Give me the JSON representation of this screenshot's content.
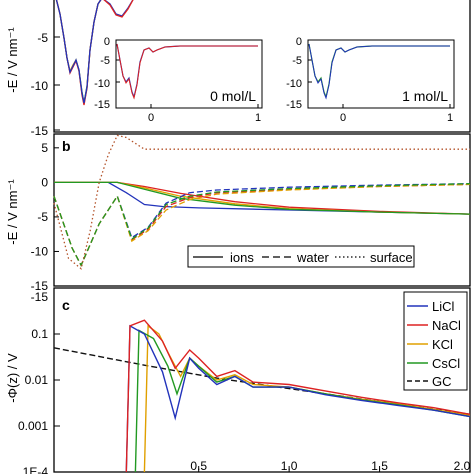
{
  "colors": {
    "LiCl": "#2233bb",
    "NaCl": "#dd2222",
    "KCl": "#e0a000",
    "CsCl": "#229922",
    "GC": "#111111",
    "axis": "#000000"
  },
  "chart_data": [
    {
      "id": "a",
      "type": "line",
      "ylabel": "-E / V nm⁻¹",
      "yticks": [
        "-5",
        "-10",
        "-15"
      ],
      "insets": [
        {
          "label": "0 mol/L",
          "xticks": [
            "0",
            "1"
          ],
          "yticks": [
            "0",
            "-5",
            "-10",
            "-15"
          ]
        },
        {
          "label": "1 mol/L",
          "xticks": [
            "0",
            "1"
          ],
          "yticks": [
            "0",
            "-5",
            "-10",
            "-15"
          ]
        }
      ]
    },
    {
      "id": "b",
      "type": "line",
      "panel_label": "b",
      "xlim": [
        -0.3,
        2.0
      ],
      "ylim": [
        -15,
        7
      ],
      "ylabel": "-E / V nm⁻¹",
      "yticks": [
        "-15",
        "-10",
        "-5",
        "0",
        "5"
      ],
      "legend": {
        "position": "bottom-right",
        "entries": [
          {
            "name": "ions",
            "dash": "solid"
          },
          {
            "name": "water",
            "dash": "dashed"
          },
          {
            "name": "surface",
            "dash": "dotted"
          }
        ]
      },
      "series": [
        {
          "name": "ions",
          "salt": "LiCl",
          "x": [
            -0.3,
            0.0,
            0.1,
            0.2,
            0.3,
            0.5,
            1.0,
            1.5,
            2.0
          ],
          "y": [
            0,
            0,
            -1.5,
            -3.2,
            -3.5,
            -3.7,
            -4.0,
            -4.3,
            -4.6
          ]
        },
        {
          "name": "ions",
          "salt": "NaCl",
          "x": [
            -0.3,
            0.05,
            0.2,
            0.4,
            0.7,
            1.0,
            1.5,
            2.0
          ],
          "y": [
            0,
            0,
            -0.6,
            -1.6,
            -2.8,
            -3.6,
            -4.2,
            -4.6
          ]
        },
        {
          "name": "ions",
          "salt": "KCl",
          "x": [
            -0.3,
            0.05,
            0.2,
            0.4,
            0.7,
            1.0,
            1.5,
            2.0
          ],
          "y": [
            0,
            0,
            -0.8,
            -2.0,
            -3.1,
            -3.8,
            -4.3,
            -4.6
          ]
        },
        {
          "name": "ions",
          "salt": "CsCl",
          "x": [
            -0.3,
            0.05,
            0.2,
            0.4,
            0.7,
            1.0,
            1.5,
            2.0
          ],
          "y": [
            0,
            0,
            -1.0,
            -2.3,
            -3.3,
            -3.9,
            -4.3,
            -4.6
          ]
        },
        {
          "name": "water",
          "salt": "LiCl",
          "x": [
            -0.3,
            -0.2,
            -0.15,
            -0.05,
            0.05,
            0.13,
            0.22,
            0.32,
            0.45,
            0.6,
            1.0,
            1.5,
            2.0
          ],
          "y": [
            -2,
            -9.5,
            -12,
            -6,
            -2,
            -8,
            -6.5,
            -3,
            -1.5,
            -1.1,
            -0.7,
            -0.4,
            -0.2
          ]
        },
        {
          "name": "water",
          "salt": "NaCl",
          "x": [
            -0.3,
            -0.2,
            -0.15,
            -0.05,
            0.05,
            0.13,
            0.22,
            0.32,
            0.45,
            0.6,
            1.0,
            1.5,
            2.0
          ],
          "y": [
            -2,
            -9.5,
            -12,
            -6,
            -2,
            -8.3,
            -6.8,
            -3.5,
            -2.2,
            -1.5,
            -1.0,
            -0.6,
            -0.3
          ]
        },
        {
          "name": "water",
          "salt": "KCl",
          "x": [
            -0.3,
            -0.2,
            -0.15,
            -0.05,
            0.05,
            0.13,
            0.22,
            0.32,
            0.45,
            0.6,
            1.0,
            1.5,
            2.0
          ],
          "y": [
            -2,
            -9.5,
            -12,
            -6,
            -2,
            -8.5,
            -7,
            -4,
            -2.5,
            -1.7,
            -1.1,
            -0.6,
            -0.3
          ]
        },
        {
          "name": "water",
          "salt": "CsCl",
          "x": [
            -0.3,
            -0.2,
            -0.15,
            -0.05,
            0.05,
            0.13,
            0.22,
            0.32,
            0.45,
            0.6,
            1.0,
            1.5,
            2.0
          ],
          "y": [
            -2,
            -9.5,
            -12,
            -6,
            -2,
            -8.2,
            -6.6,
            -3.2,
            -2.0,
            -1.4,
            -0.9,
            -0.5,
            -0.2
          ]
        },
        {
          "name": "surface",
          "x": [
            -0.3,
            -0.22,
            -0.15,
            -0.1,
            -0.05,
            0.0,
            0.05,
            0.1,
            0.2,
            2.0
          ],
          "y": [
            -3,
            -11,
            -12.5,
            -7,
            0,
            4,
            6.8,
            6.5,
            4.8,
            4.8
          ]
        }
      ]
    },
    {
      "id": "c",
      "type": "line",
      "panel_label": "c",
      "xlim": [
        -0.3,
        2.0
      ],
      "ylabel": "-Φ(z) / V",
      "yscale": "log",
      "ylim": [
        0.0001,
        1
      ],
      "yticks": [
        "1E-4",
        "0.001",
        "0.01",
        "0.1"
      ],
      "top_tick": "-15",
      "xticks": [
        "0.5",
        "1.0",
        "1.5",
        "2.0"
      ],
      "legend": {
        "position": "top-right",
        "entries": [
          "LiCl",
          "NaCl",
          "KCl",
          "CsCl",
          "GC"
        ]
      },
      "series": [
        {
          "name": "LiCl",
          "x": [
            0.1,
            0.12,
            0.2,
            0.3,
            0.37,
            0.45,
            0.5,
            0.6,
            0.7,
            0.8,
            1.0,
            1.2,
            1.4,
            1.6,
            1.8,
            2.0
          ],
          "y": [
            0.0001,
            0.15,
            0.1,
            0.015,
            0.0015,
            0.03,
            0.018,
            0.008,
            0.012,
            0.007,
            0.007,
            0.0048,
            0.0036,
            0.0028,
            0.0022,
            0.0016
          ]
        },
        {
          "name": "NaCl",
          "x": [
            0.1,
            0.12,
            0.2,
            0.3,
            0.37,
            0.45,
            0.5,
            0.6,
            0.7,
            0.8,
            1.0,
            1.2,
            1.4,
            1.6,
            1.8,
            2.0
          ],
          "y": [
            0.0001,
            0.15,
            0.2,
            0.07,
            0.018,
            0.045,
            0.03,
            0.012,
            0.016,
            0.009,
            0.008,
            0.0058,
            0.0042,
            0.0032,
            0.0025,
            0.0018
          ]
        },
        {
          "name": "KCl",
          "x": [
            0.2,
            0.22,
            0.28,
            0.33,
            0.4,
            0.45,
            0.5,
            0.6,
            0.7,
            0.8,
            1.0,
            1.2,
            1.4,
            1.6,
            1.8,
            2.0
          ],
          "y": [
            0.0001,
            0.15,
            0.1,
            0.04,
            0.012,
            0.03,
            0.02,
            0.01,
            0.013,
            0.008,
            0.007,
            0.005,
            0.0038,
            0.003,
            0.0023,
            0.0017
          ]
        },
        {
          "name": "CsCl",
          "x": [
            0.15,
            0.17,
            0.25,
            0.33,
            0.38,
            0.45,
            0.5,
            0.6,
            0.7,
            0.8,
            1.0,
            1.2,
            1.4,
            1.6,
            1.8,
            2.0
          ],
          "y": [
            0.0001,
            0.12,
            0.08,
            0.02,
            0.005,
            0.03,
            0.02,
            0.009,
            0.012,
            0.007,
            0.007,
            0.005,
            0.0037,
            0.0029,
            0.0022,
            0.0016
          ]
        },
        {
          "name": "GC",
          "x": [
            -0.3,
            0.2,
            0.6,
            1.0,
            1.5,
            2.0
          ],
          "y": [
            0.05,
            0.021,
            0.011,
            0.0065,
            0.0034,
            0.0018
          ]
        }
      ]
    }
  ]
}
